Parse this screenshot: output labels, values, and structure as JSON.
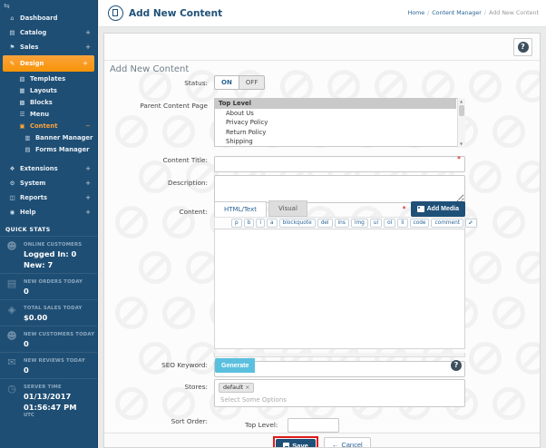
{
  "header": {
    "title": "Add New Content",
    "breadcrumbs": [
      {
        "label": "Home",
        "link": true
      },
      {
        "label": "Content Manager",
        "link": true
      },
      {
        "label": "Add New Content",
        "link": false
      }
    ]
  },
  "sidebar": {
    "menu": [
      {
        "label": "Dashboard",
        "icon": "home-icon",
        "glyph": "⌂",
        "level": 0,
        "suffix": ""
      },
      {
        "label": "Catalog",
        "icon": "folder-icon",
        "glyph": "▤",
        "level": 0,
        "suffix": "+"
      },
      {
        "label": "Sales",
        "icon": "flag-icon",
        "glyph": "⚑",
        "level": 0,
        "suffix": "+"
      },
      {
        "label": "Design",
        "icon": "pencil-icon",
        "glyph": "✎",
        "level": 0,
        "suffix": "+",
        "state": "active"
      },
      {
        "label": "Templates",
        "icon": "templates-icon",
        "glyph": "▧",
        "level": 1,
        "suffix": ""
      },
      {
        "label": "Layouts",
        "icon": "layouts-icon",
        "glyph": "▦",
        "level": 1,
        "suffix": ""
      },
      {
        "label": "Blocks",
        "icon": "blocks-icon",
        "glyph": "▩",
        "level": 1,
        "suffix": ""
      },
      {
        "label": "Menu",
        "icon": "menu-icon",
        "glyph": "☰",
        "level": 1,
        "suffix": ""
      },
      {
        "label": "Content",
        "icon": "content-file-icon",
        "glyph": "▣",
        "level": 1,
        "suffix": "−",
        "state": "highlight"
      },
      {
        "label": "Banner Manager",
        "icon": "banner-icon",
        "glyph": "▥",
        "level": 2,
        "suffix": ""
      },
      {
        "label": "Forms Manager",
        "icon": "forms-icon",
        "glyph": "▤",
        "level": 2,
        "suffix": ""
      },
      {
        "label": "Extensions",
        "icon": "extensions-icon",
        "glyph": "❖",
        "level": 0,
        "suffix": "+",
        "gap": true
      },
      {
        "label": "System",
        "icon": "gear-icon",
        "glyph": "⚙",
        "level": 0,
        "suffix": "+"
      },
      {
        "label": "Reports",
        "icon": "chart-icon",
        "glyph": "◫",
        "level": 0,
        "suffix": "+"
      },
      {
        "label": "Help",
        "icon": "lifering-icon",
        "glyph": "◉",
        "level": 0,
        "suffix": "+"
      }
    ],
    "quick_stats_title": "QUICK STATS",
    "stats": [
      {
        "icon": "users-icon",
        "glyph": "☻",
        "label": "ONLINE CUSTOMERS",
        "lines": [
          "Logged In: 0",
          "New: 7"
        ]
      },
      {
        "icon": "credit-card-icon",
        "glyph": "▤",
        "label": "NEW ORDERS TODAY",
        "lines": [
          "0"
        ]
      },
      {
        "icon": "money-icon",
        "glyph": "◈",
        "label": "TOTAL SALES TODAY",
        "lines": [
          "$0.00"
        ]
      },
      {
        "icon": "user-icon",
        "glyph": "☻",
        "label": "NEW CUSTOMERS TODAY",
        "lines": [
          "0"
        ]
      },
      {
        "icon": "comment-icon",
        "glyph": "✉",
        "label": "NEW REVIEWS TODAY",
        "lines": [
          "0"
        ]
      },
      {
        "icon": "clock-icon",
        "glyph": "◷",
        "label": "SERVER TIME",
        "lines": [
          "01/13/2017",
          "01:56:47 PM",
          "UTC"
        ]
      }
    ]
  },
  "panel": {
    "help": "?"
  },
  "form": {
    "section_title": "Add New Content",
    "status": {
      "label": "Status:",
      "on": "ON",
      "off": "OFF"
    },
    "parent": {
      "label": "Parent Content Page",
      "options": [
        "Top Level",
        "About Us",
        "Privacy Policy",
        "Return Policy",
        "Shipping"
      ],
      "selected": "Top Level"
    },
    "content_title": {
      "label": "Content Title:",
      "required": "*",
      "value": ""
    },
    "description": {
      "label": "Description:",
      "value": ""
    },
    "content": {
      "label": "Content:",
      "tab_html": "HTML/Text",
      "tab_visual": "Visual",
      "required": "*",
      "add_media": "Add Media",
      "toolbar": [
        "p",
        "b",
        "i",
        "a",
        "blockquote",
        "del",
        "ins",
        "img",
        "ul",
        "ol",
        "li",
        "code",
        "comment"
      ],
      "value": ""
    },
    "seo": {
      "label": "SEO Keyword:",
      "generate": "Generate",
      "help": "?",
      "value": ""
    },
    "stores": {
      "label": "Stores:",
      "tag": "default",
      "tag_remove": "×",
      "placeholder": "Select Some Options"
    },
    "sort": {
      "label": "Sort Order:",
      "sublabel": "Top Level:",
      "value": ""
    },
    "footer": {
      "save": "Save",
      "cancel": "Cancel",
      "cancel_arrow": "←"
    }
  },
  "colors": {
    "sidebar": "#1e4e74",
    "accent_orange": "#f89406",
    "navy_button": "#1f5078",
    "generate_blue": "#5bc0de",
    "annotation_red": "#e01b1b",
    "required_red": "#cc0000"
  }
}
